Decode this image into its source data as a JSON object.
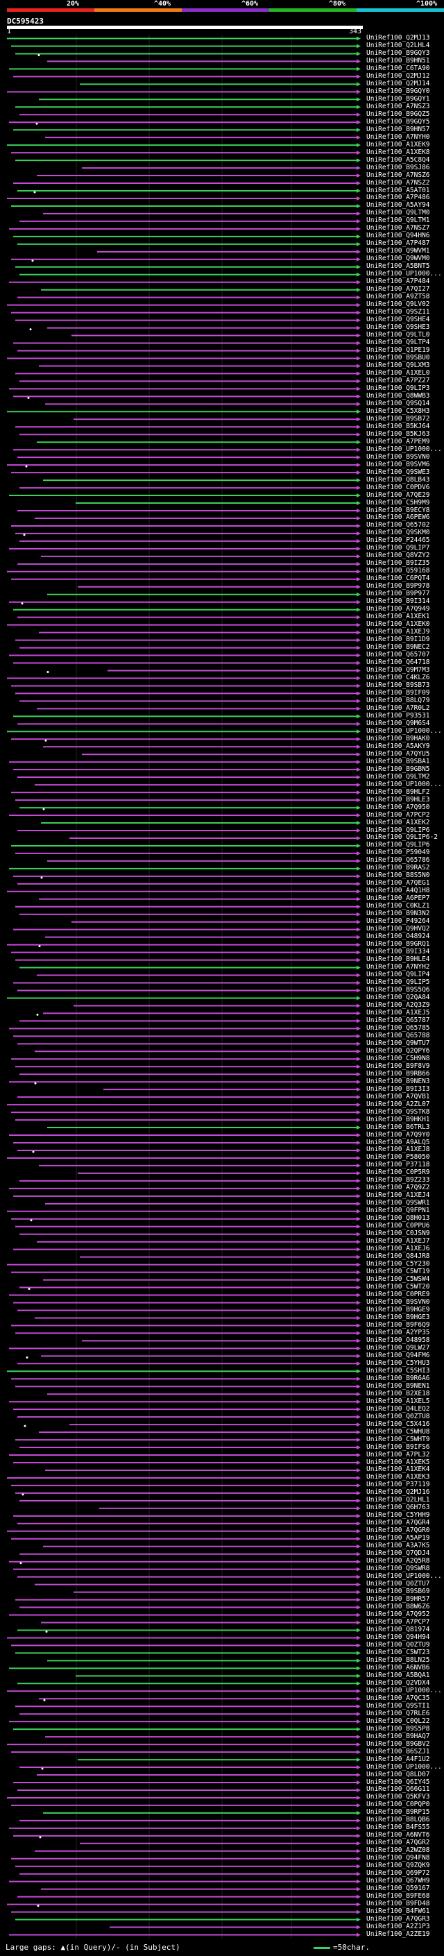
{
  "scale": {
    "labels": [
      "20%",
      "^40%",
      "^60%",
      "^80%",
      "^100%"
    ],
    "colors": [
      "#e8221e",
      "#f07c18",
      "#8b2fc9",
      "#26b526",
      "#19c3d6"
    ]
  },
  "query": {
    "name": "DC595423",
    "start": "1",
    "end": "343"
  },
  "hits": [
    "UniRef100_Q2MJ13",
    "UniRef100_Q2LHL4",
    "UniRef100_B9GQY3",
    "UniRef100_B9HN51",
    "UniRef100_C6TA90",
    "UniRef100_Q2MJ12",
    "UniRef100_Q2MJ14",
    "UniRef100_B9GQY0",
    "UniRef100_B9GQY1",
    "UniRef100_A7NSZ3",
    "UniRef100_B9GQZ5",
    "UniRef100_B9GQY5",
    "UniRef100_B9HN57",
    "UniRef100_A7NYH0",
    "UniRef100_A1XEK9",
    "UniRef100_A1XEK8",
    "UniRef100_A5C8Q4",
    "UniRef100_B9SJ86",
    "UniRef100_A7NSZ6",
    "UniRef100_A7NSZ2",
    "UniRef100_A5AT01",
    "UniRef100_A7P486",
    "UniRef100_A5AY94",
    "UniRef100_Q9LTM0",
    "UniRef100_Q9LTM1",
    "UniRef100_A7NSZ7",
    "UniRef100_Q94HN6",
    "UniRef100_A7P487",
    "UniRef100_Q9WVM1",
    "UniRef100_Q9WVM0",
    "UniRef100_A5BNT5",
    "UniRef100_UP1000...",
    "UniRef100_A7P484",
    "UniRef100_A7QI27",
    "UniRef100_A9ZT58",
    "UniRef100_Q9LV02",
    "UniRef100_Q9SZ11",
    "UniRef100_Q9SHE4",
    "UniRef100_Q9SHE3",
    "UniRef100_Q9LTL0",
    "UniRef100_Q9LTP4",
    "UniRef100_Q1PE19",
    "UniRef100_B9SBU0",
    "UniRef100_Q9LXM3",
    "UniRef100_A1XEL0",
    "UniRef100_A7PZ27",
    "UniRef100_Q9LIP3",
    "UniRef100_Q8WWB3",
    "UniRef100_Q9SQ14",
    "UniRef100_C5X8H3",
    "UniRef100_B9SB72",
    "UniRef100_B5KJ64",
    "UniRef100_B5KJ63",
    "UniRef100_A7PEM9",
    "UniRef100_UP1000...",
    "UniRef100_B9SVN0",
    "UniRef100_B9SVM6",
    "UniRef100_Q9SWE3",
    "UniRef100_Q8LB43",
    "UniRef100_C0PDV6",
    "UniRef100_A7QE29",
    "UniRef100_C5H9M9",
    "UniRef100_B9ECY8",
    "UniRef100_A6PEW6",
    "UniRef100_Q65702",
    "UniRef100_Q9SKM0",
    "UniRef100_P24465",
    "UniRef100_Q9LIP7",
    "UniRef100_Q8VZY2",
    "UniRef100_B9IZ35",
    "UniRef100_Q59168",
    "UniRef100_C6PQT4",
    "UniRef100_B9P978",
    "UniRef100_B9P977",
    "UniRef100_B9I314",
    "UniRef100_A7Q949",
    "UniRef100_A1XEK1",
    "UniRef100_A1XEK0",
    "UniRef100_A1XEJ9",
    "UniRef100_B9I1D9",
    "UniRef100_B9NEC2",
    "UniRef100_Q65707",
    "UniRef100_Q64718",
    "UniRef100_Q9M7M3",
    "UniRef100_C4KLZ6",
    "UniRef100_B9SB73",
    "UniRef100_B9IF09",
    "UniRef100_B8LQ79",
    "UniRef100_A7R0L2",
    "UniRef100_P93531",
    "UniRef100_Q9M6S4",
    "UniRef100_UP1000...",
    "UniRef100_B9HAK0",
    "UniRef100_A5AKY9",
    "UniRef100_A7QYU5",
    "UniRef100_B9SBA1",
    "UniRef100_B9GBN5",
    "UniRef100_Q9LTM2",
    "UniRef100_UP1000...",
    "UniRef100_B9HLF2",
    "UniRef100_B9HLE3",
    "UniRef100_A7Q950",
    "UniRef100_A7PCP2",
    "UniRef100_A1XEK2",
    "UniRef100_Q9LIP6",
    "UniRef100_Q9LIP6-2",
    "UniRef100_Q9LIP6",
    "UniRef100_P59049",
    "UniRef100_Q65786",
    "UniRef100_B9RAS2",
    "UniRef100_B8S5N0",
    "UniRef100_A7QEG1",
    "UniRef100_A4Q1H8",
    "UniRef100_A6PEP7",
    "UniRef100_C0KLZ1",
    "UniRef100_B9N3N2",
    "UniRef100_P49264",
    "UniRef100_Q9HVQ2",
    "UniRef100_O48924",
    "UniRef100_B9GRQ1",
    "UniRef100_B9I334",
    "UniRef100_B9HLE4",
    "UniRef100_A7NYH2",
    "UniRef100_Q9LIP4",
    "UniRef100_Q9LIP5",
    "UniRef100_B9S5Q6",
    "UniRef100_Q2QA84",
    "UniRef100_A2Q3Z9",
    "UniRef100_A1XEJ5",
    "UniRef100_Q65787",
    "UniRef100_Q65785",
    "UniRef100_Q65788",
    "UniRef100_Q9WTU7",
    "UniRef100_Q2QPY6",
    "UniRef100_C5H9N8",
    "UniRef100_B9F8V9",
    "UniRef100_B9RB66",
    "UniRef100_B9NEN3",
    "UniRef100_B9I3I3",
    "UniRef100_A7QVB1",
    "UniRef100_A2ZL07",
    "UniRef100_Q9STK8",
    "UniRef100_B9HKH1",
    "UniRef100_B6TRL3",
    "UniRef100_A7Q9Y0",
    "UniRef100_A9ALQ5",
    "UniRef100_A1XEJ8",
    "UniRef100_P58050",
    "UniRef100_P37118",
    "UniRef100_C0P5R9",
    "UniRef100_B9Z233",
    "UniRef100_A7Q9Z2",
    "UniRef100_A1XEJ4",
    "UniRef100_Q9SWR1",
    "UniRef100_Q9FPN1",
    "UniRef100_Q8H013",
    "UniRef100_C0PPU6",
    "UniRef100_C0JSN9",
    "UniRef100_A1XEJ7",
    "UniRef100_A1XEJ6",
    "UniRef100_Q84JR8",
    "UniRef100_C5Y230",
    "UniRef100_C5WT19",
    "UniRef100_C5WSW4",
    "UniRef100_C5WT20",
    "UniRef100_C0PRE9",
    "UniRef100_B9SVN0",
    "UniRef100_B9HGE9",
    "UniRef100_B9HGE3",
    "UniRef100_B9F6Q9",
    "UniRef100_A2YP35",
    "UniRef100_O48958",
    "UniRef100_Q9LW27",
    "UniRef100_Q94FM6",
    "UniRef100_C5YHU3",
    "UniRef100_C5SHI3",
    "UniRef100_B9R6A6",
    "UniRef100_B9NEN1",
    "UniRef100_B2XE18",
    "UniRef100_A1XEL5",
    "UniRef100_Q4LEQ2",
    "UniRef100_Q0ZTU8",
    "UniRef100_C5X416",
    "UniRef100_C5WHU8",
    "UniRef100_C5WHT9",
    "UniRef100_B9IFS6",
    "UniRef100_A7PL32",
    "UniRef100_A1XEK5",
    "UniRef100_A1XEK4",
    "UniRef100_A1XEK3",
    "UniRef100_P37119",
    "UniRef100_Q2MJ16",
    "UniRef100_Q2LHL1",
    "UniRef100_Q6H763",
    "UniRef100_C5YHH9",
    "UniRef100_A7QGR4",
    "UniRef100_A7QGR0",
    "UniRef100_A5AP19",
    "UniRef100_A3A7K5",
    "UniRef100_Q7QDJ4",
    "UniRef100_A2Q5R8",
    "UniRef100_Q9SWR8",
    "UniRef100_UP1000...",
    "UniRef100_Q0ZTU7",
    "UniRef100_B9SB69",
    "UniRef100_B9HR57",
    "UniRef100_B8W6Z6",
    "UniRef100_A7Q952",
    "UniRef100_A7PCP7",
    "UniRef100_Q81974",
    "UniRef100_Q94H94",
    "UniRef100_Q0ZTU9",
    "UniRef100_C5WT23",
    "UniRef100_B8LN25",
    "UniRef100_A6NVB6",
    "UniRef100_A5BQA1",
    "UniRef100_Q2VDX4",
    "UniRef100_UP1000...",
    "UniRef100_A7QC35",
    "UniRef100_Q9STI1",
    "UniRef100_Q7RLE6",
    "UniRef100_C0QL22",
    "UniRef100_B9S5P8",
    "UniRef100_B9HAQ7",
    "UniRef100_B9GBV2",
    "UniRef100_B6SZJ1",
    "UniRef100_A4F1U2",
    "UniRef100_UP1000...",
    "UniRef100_Q8LD07",
    "UniRef100_Q6IY45",
    "UniRef100_Q66G11",
    "UniRef100_Q5KFV3",
    "UniRef100_C0PQP0",
    "UniRef100_B9RP15",
    "UniRef100_B8LQB6",
    "UniRef100_B4FS55",
    "UniRef100_A6NVT6",
    "UniRef100_A7QGR2",
    "UniRef100_A2WZ08",
    "UniRef100_Q94FN8",
    "UniRef100_Q9ZQK9",
    "UniRef100_Q69P72",
    "UniRef100_Q67WH9",
    "UniRef100_Q59167",
    "UniRef100_B9FE68",
    "UniRef100_B9FD48",
    "UniRef100_B4FW61",
    "UniRef100_A7QGR3",
    "UniRef100_A2Z1P3",
    "UniRef100_A2ZE19"
  ],
  "footer": {
    "text": "Large gaps: ▲(in Query)/- (in Subject)"
  },
  "legend": {
    "text": "=50char."
  }
}
